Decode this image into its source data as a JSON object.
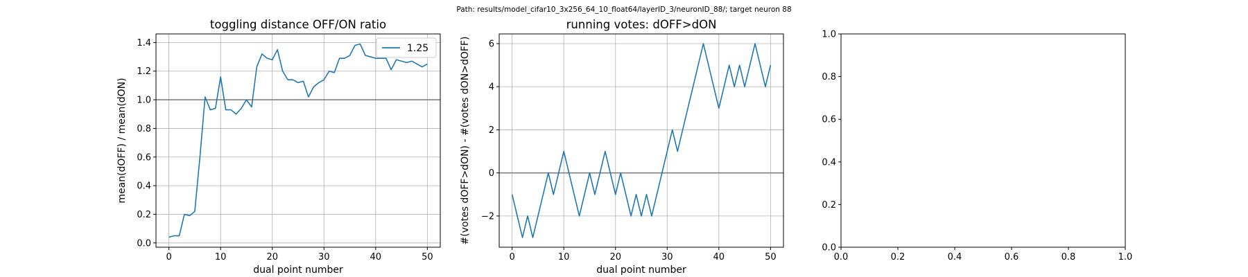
{
  "figure": {
    "suptitle": "Path: results/model_cifar10_3x256_64_10_float64/layerID_3/neuronID_88/; target neuron 88"
  },
  "colors": {
    "series": "#1f77b4",
    "refline": "#7f7f7f",
    "grid": "#b0b0b0"
  },
  "chart_data": [
    {
      "type": "line",
      "title": "toggling distance OFF/ON ratio",
      "xlabel": "dual point number",
      "ylabel": "mean(dOFF) / mean(dON)",
      "xlim": [
        -2.5,
        52.5
      ],
      "ylim": [
        -0.03,
        1.46
      ],
      "xticks": [
        0,
        10,
        20,
        30,
        40,
        50
      ],
      "xticklabels": [
        "0",
        "10",
        "20",
        "30",
        "40",
        "50"
      ],
      "yticks": [
        0.0,
        0.2,
        0.4,
        0.6,
        0.8,
        1.0,
        1.2,
        1.4
      ],
      "yticklabels": [
        "0.0",
        "0.2",
        "0.4",
        "0.6",
        "0.8",
        "1.0",
        "1.2",
        "1.4"
      ],
      "grid": true,
      "hline": 1.0,
      "legend": {
        "position": "top-right",
        "entries": [
          "1.25"
        ]
      },
      "series": [
        {
          "name": "1.25",
          "x": [
            0,
            1,
            2,
            3,
            4,
            5,
            6,
            7,
            8,
            9,
            10,
            11,
            12,
            13,
            14,
            15,
            16,
            17,
            18,
            19,
            20,
            21,
            22,
            23,
            24,
            25,
            26,
            27,
            28,
            29,
            30,
            31,
            32,
            33,
            34,
            35,
            36,
            37,
            38,
            39,
            40,
            41,
            42,
            43,
            44,
            45,
            46,
            47,
            48,
            49,
            50
          ],
          "y": [
            0.04,
            0.05,
            0.05,
            0.2,
            0.19,
            0.22,
            0.6,
            1.02,
            0.93,
            0.94,
            1.16,
            0.93,
            0.93,
            0.9,
            0.94,
            1.0,
            0.95,
            1.23,
            1.32,
            1.29,
            1.28,
            1.35,
            1.2,
            1.14,
            1.14,
            1.12,
            1.13,
            1.02,
            1.09,
            1.12,
            1.14,
            1.2,
            1.19,
            1.29,
            1.29,
            1.31,
            1.38,
            1.39,
            1.31,
            1.3,
            1.29,
            1.29,
            1.29,
            1.21,
            1.28,
            1.27,
            1.26,
            1.27,
            1.25,
            1.23,
            1.25
          ]
        }
      ]
    },
    {
      "type": "line",
      "title": "running votes: dOFF>dON",
      "xlabel": "dual point number",
      "ylabel": "#(votes dOFF>dON) - #(votes dON>dOFF)",
      "xlim": [
        -2.5,
        52.5
      ],
      "ylim": [
        -3.45,
        6.45
      ],
      "xticks": [
        0,
        10,
        20,
        30,
        40,
        50
      ],
      "xticklabels": [
        "0",
        "10",
        "20",
        "30",
        "40",
        "50"
      ],
      "yticks": [
        -2,
        0,
        2,
        4,
        6
      ],
      "yticklabels": [
        "−2",
        "0",
        "2",
        "4",
        "6"
      ],
      "grid": true,
      "hline": 0,
      "series": [
        {
          "x": [
            0,
            1,
            2,
            3,
            4,
            5,
            6,
            7,
            8,
            9,
            10,
            11,
            12,
            13,
            14,
            15,
            16,
            17,
            18,
            19,
            20,
            21,
            22,
            23,
            24,
            25,
            26,
            27,
            28,
            29,
            30,
            31,
            32,
            33,
            34,
            35,
            36,
            37,
            38,
            39,
            40,
            41,
            42,
            43,
            44,
            45,
            46,
            47,
            48,
            49,
            50
          ],
          "y": [
            -1,
            -2,
            -3,
            -2,
            -3,
            -2,
            -1,
            0,
            -1,
            0,
            1,
            0,
            -1,
            -2,
            -1,
            0,
            -1,
            0,
            1,
            0,
            -1,
            0,
            -1,
            -2,
            -1,
            -2,
            -1,
            -2,
            -1,
            0,
            1,
            2,
            1,
            2,
            3,
            4,
            5,
            6,
            5,
            4,
            3,
            4,
            5,
            4,
            5,
            4,
            5,
            6,
            5,
            4,
            5
          ]
        }
      ]
    },
    {
      "type": "line",
      "title": "",
      "xlabel": "",
      "ylabel": "",
      "xlim": [
        0,
        1
      ],
      "ylim": [
        0,
        1
      ],
      "xticks": [
        0.0,
        0.2,
        0.4,
        0.6,
        0.8,
        1.0
      ],
      "xticklabels": [
        "0.0",
        "0.2",
        "0.4",
        "0.6",
        "0.8",
        "1.0"
      ],
      "yticks": [
        0.0,
        0.2,
        0.4,
        0.6,
        0.8,
        1.0
      ],
      "yticklabels": [
        "0.0",
        "0.2",
        "0.4",
        "0.6",
        "0.8",
        "1.0"
      ],
      "grid": false,
      "series": []
    }
  ]
}
